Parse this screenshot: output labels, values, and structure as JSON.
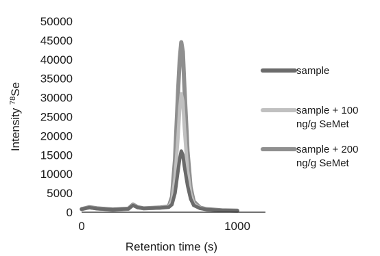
{
  "chart_data": {
    "type": "line",
    "xlabel": "Retention time (s)",
    "ylabel_main": "Intensity ",
    "ylabel_sup": "78",
    "ylabel_suffix": "Se",
    "xlim": [
      0,
      1200
    ],
    "ylim": [
      0,
      50000
    ],
    "x_ticks": [
      0,
      1000
    ],
    "y_ticks": [
      0,
      5000,
      10000,
      15000,
      20000,
      25000,
      30000,
      35000,
      40000,
      45000,
      50000
    ],
    "grid": false,
    "legend_position": "right",
    "series": [
      {
        "name": "sample",
        "legend_lines": [
          "sample"
        ],
        "color": "#6b6b6b",
        "x": [
          0,
          50,
          100,
          200,
          300,
          330,
          360,
          400,
          500,
          560,
          580,
          600,
          620,
          630,
          640,
          650,
          660,
          680,
          700,
          720,
          760,
          800,
          900,
          1000
        ],
        "y": [
          800,
          1200,
          900,
          700,
          900,
          1800,
          1200,
          1000,
          1100,
          1300,
          2000,
          5000,
          11000,
          14000,
          16000,
          15000,
          12000,
          7000,
          3500,
          1800,
          1000,
          700,
          500,
          400
        ]
      },
      {
        "name": "sample + 100 ng/g SeMet",
        "legend_lines": [
          "sample + 100",
          "ng/g SeMet"
        ],
        "color": "#c0c0c0",
        "x": [
          0,
          50,
          100,
          200,
          300,
          330,
          360,
          400,
          500,
          560,
          580,
          600,
          620,
          630,
          640,
          650,
          660,
          680,
          700,
          720,
          760,
          800,
          900,
          1000
        ],
        "y": [
          800,
          1200,
          900,
          700,
          900,
          1900,
          1200,
          1000,
          1100,
          1400,
          3000,
          9000,
          20000,
          27000,
          31000,
          29000,
          22000,
          11000,
          5000,
          2200,
          1100,
          700,
          500,
          400
        ]
      },
      {
        "name": "sample + 200 ng/g SeMet",
        "legend_lines": [
          "sample + 200",
          "ng/g SeMet"
        ],
        "color": "#8f8f8f",
        "x": [
          0,
          50,
          100,
          200,
          300,
          330,
          360,
          400,
          500,
          560,
          580,
          600,
          620,
          630,
          640,
          650,
          660,
          680,
          700,
          720,
          760,
          800,
          900,
          1000
        ],
        "y": [
          800,
          1300,
          1000,
          700,
          900,
          2000,
          1300,
          1000,
          1200,
          1500,
          4000,
          14000,
          32000,
          40000,
          44500,
          42000,
          33000,
          16000,
          6500,
          2800,
          1200,
          800,
          500,
          400
        ]
      }
    ]
  }
}
